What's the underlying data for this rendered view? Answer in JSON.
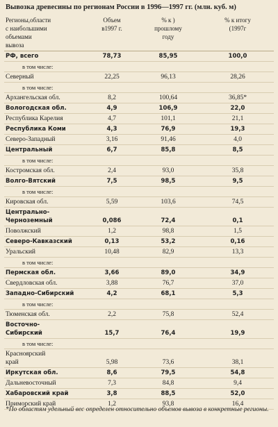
{
  "title": "Вывозка древесины по регионам России в 1996—1997 гг. (млн. куб. м)",
  "table": {
    "header": [
      [
        "Регионы,области",
        "с наибольшими",
        "объемами",
        "вывоза"
      ],
      [
        "Объем",
        "в1997 г."
      ],
      [
        "% к )",
        "прошлому",
        "году"
      ],
      [
        "% к итогу",
        "(1997г"
      ]
    ],
    "rows": [
      {
        "cells": [
          "РФ, всего",
          "78,73",
          "85,95",
          "100,0"
        ],
        "bold": true
      },
      {
        "note": "в том числе:"
      },
      {
        "cells": [
          "Северный",
          "22,25",
          "96,13",
          "28,26"
        ]
      },
      {
        "note": "в том числе:"
      },
      {
        "cells": [
          "Архангельская обл.",
          "8,2",
          "100,64",
          "36,85*"
        ]
      },
      {
        "cells": [
          "Вологодская обл.",
          "4,9",
          "106,9",
          "22,0"
        ],
        "bold": true
      },
      {
        "cells": [
          "Республика Карелия",
          "4,7",
          "101,1",
          "21,1"
        ]
      },
      {
        "cells": [
          "Республика Коми",
          "4,3",
          "76,9",
          "19,3"
        ],
        "bold": true
      },
      {
        "cells": [
          "Северо-Западный",
          "3,16",
          "91,46",
          "4,0"
        ]
      },
      {
        "cells": [
          "Центральный",
          "6,7",
          "85,8",
          "8,5"
        ],
        "bold": true
      },
      {
        "note": "в том числе:"
      },
      {
        "cells": [
          "Костромская обл.",
          "2,4",
          "93,0",
          "35,8"
        ]
      },
      {
        "cells": [
          "Волго-Вятский",
          "7,5",
          "98,5",
          "9,5"
        ],
        "bold": true
      },
      {
        "note": "в том числе:"
      },
      {
        "cells": [
          "Кировская обл.",
          "5,59",
          "103,6",
          "74,5"
        ]
      },
      {
        "cells": [
          [
            "Центрально-",
            "Черноземный"
          ],
          "0,086",
          "72,4",
          "0,1"
        ],
        "bold": true
      },
      {
        "cells": [
          "Поволжский",
          "1,2",
          "98,8",
          "1,5"
        ]
      },
      {
        "cells": [
          "Северо-Кавказский",
          "0,13",
          "53,2",
          "0,16"
        ],
        "bold": true
      },
      {
        "cells": [
          "Уральский",
          "10,48",
          "82,9",
          "13,3"
        ]
      },
      {
        "note": "в том числе:"
      },
      {
        "cells": [
          "Пермская обл.",
          "3,66",
          "89,0",
          "34,9"
        ],
        "bold": true
      },
      {
        "cells": [
          "Свердловская обл.",
          "3,88",
          "76,7",
          "37,0"
        ]
      },
      {
        "cells": [
          "Западно-Сибирский",
          "4,2",
          "68,1",
          "5,3"
        ],
        "bold": true
      },
      {
        "note": "в том числе:"
      },
      {
        "cells": [
          "Тюменская обл.",
          "2,2",
          "75,8",
          "52,4"
        ]
      },
      {
        "cells": [
          [
            "Восточно-",
            "Сибирский"
          ],
          "15,7",
          "76,4",
          "19,9"
        ],
        "bold": true
      },
      {
        "note": "в том числе:"
      },
      {
        "cells": [
          [
            "Красноярский",
            "край"
          ],
          "5,98",
          "73,6",
          "38,1"
        ]
      },
      {
        "cells": [
          "Иркутская обл.",
          "8,6",
          "79,5",
          "54,8"
        ],
        "bold": true
      },
      {
        "cells": [
          "Дальневосточный",
          "7,3",
          "84,8",
          "9,4"
        ]
      },
      {
        "cells": [
          "Хабаровский край",
          "3,8",
          "88,5",
          "52,0"
        ],
        "bold": true
      },
      {
        "cells": [
          "Приморский край",
          "1,2",
          "93,8",
          "16,4"
        ]
      }
    ]
  },
  "footnote": "*По областям удельный вес определен относительно объемов вывоза в конкретные регионы."
}
